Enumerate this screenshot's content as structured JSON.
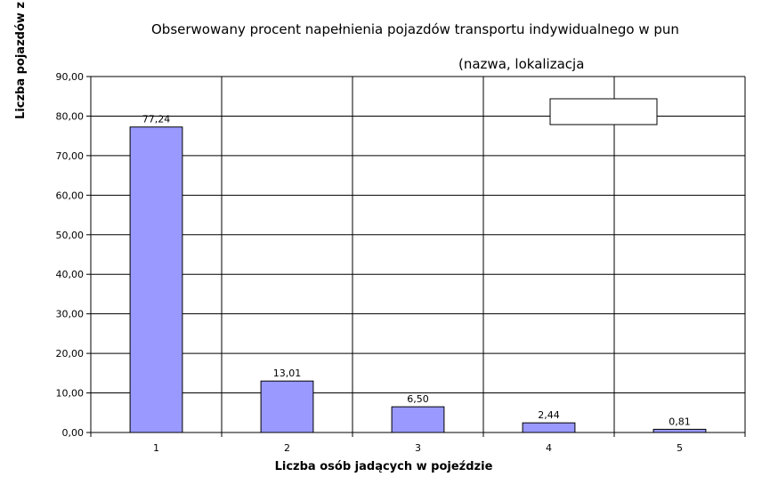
{
  "chart_data": {
    "type": "bar",
    "title": "Obserwowany procent napełnienia pojazdów transportu indywidualnego w pun",
    "subtitle": "(nazwa, lokalizacja",
    "xlabel": "Liczba osób jadących w pojeździe",
    "ylabel": "Liczba pojazdów z",
    "categories": [
      "1",
      "2",
      "3",
      "4",
      "5"
    ],
    "values": [
      77.24,
      13.01,
      6.5,
      2.44,
      0.81
    ],
    "data_labels": [
      "77,24",
      "13,01",
      "6,50",
      "2,44",
      "0,81"
    ],
    "ylim": [
      0,
      90
    ],
    "yticks": [
      0,
      10,
      20,
      30,
      40,
      50,
      60,
      70,
      80,
      90
    ],
    "ytick_labels": [
      "0,00",
      "10,00",
      "20,00",
      "30,00",
      "40,00",
      "50,00",
      "60,00",
      "70,00",
      "80,00",
      "90,00"
    ],
    "grid": true,
    "bar_color": "#9999ff",
    "legend": "empty box, top-right"
  }
}
